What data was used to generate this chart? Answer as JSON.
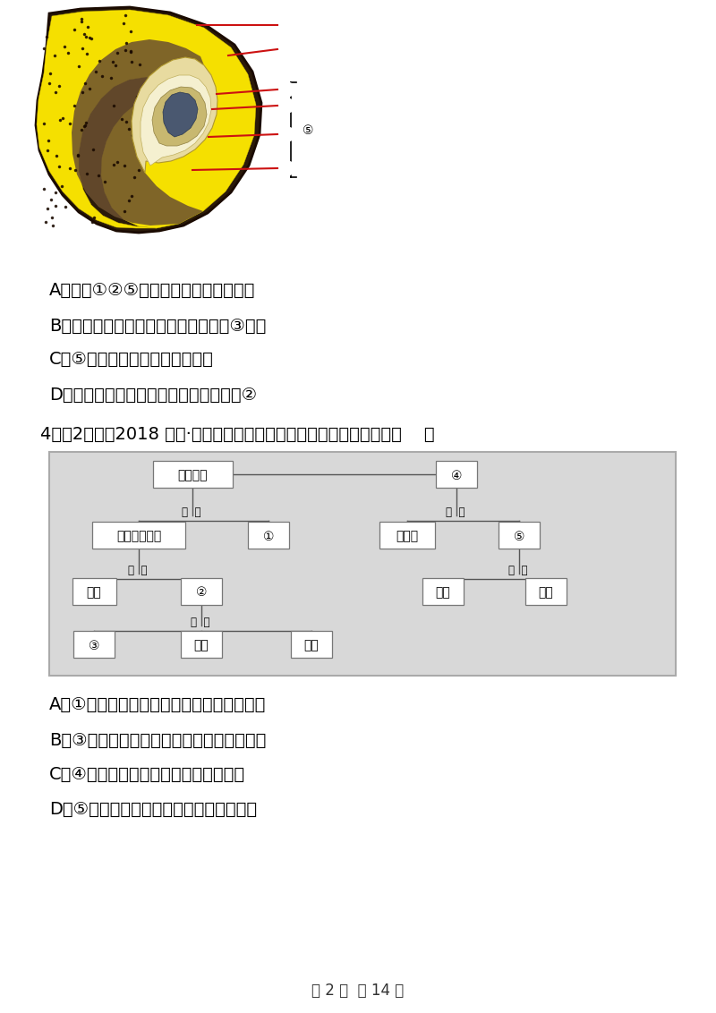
{
  "page_bg": "#ffffff",
  "options_q3": [
    "A．只要①②⑤完整，玉米种子就能萌发",
    "B．玉米种子萌发所需要的营养物质由③提供",
    "C．⑤是由雌蕊中的胚珠发育来的",
    "D．与玉米种子结构相比，菜豆种子没有②"
  ],
  "q4_header": "4．（2分）（2018 九上·海淀期末）对下面的概念图解读不正确的是（    ）",
  "diagram_bg": "#e0e0e0",
  "options_q4": [
    "A．①是周围神经系统，包括脑神经和脊神经",
    "B．③具有感觉、呼吸、心跳等多种神经中枢",
    "C．④是神经系统结构和功能的基本单位",
    "D．⑤是神经细胞与其他细胞最明显的区别"
  ],
  "footer": "第 2 页  共 14 页",
  "font_size_text": 14,
  "font_size_small": 12,
  "font_size_diagram": 10
}
